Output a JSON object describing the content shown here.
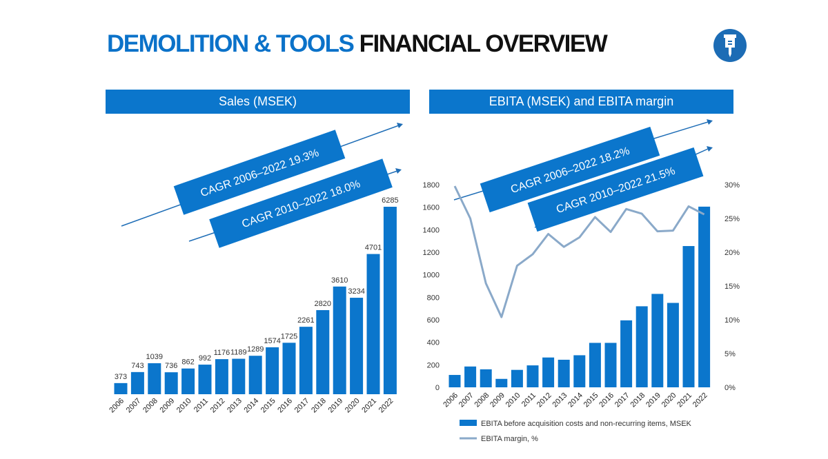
{
  "title": {
    "part1": "DEMOLITION & TOOLS",
    "part2": "FINANCIAL OVERVIEW"
  },
  "colors": {
    "accent": "#0b76cc",
    "line": "#8aa9c9",
    "title_blue": "#0b72c9"
  },
  "logo": {
    "icon": "demolition-hammer-icon"
  },
  "chart_data": [
    {
      "type": "bar",
      "title": "Sales (MSEK)",
      "categories": [
        "2006",
        "2007",
        "2008",
        "2009",
        "2010",
        "2011",
        "2012",
        "2013",
        "2014",
        "2015",
        "2016",
        "2017",
        "2018",
        "2019",
        "2020",
        "2021",
        "2022"
      ],
      "values": [
        373,
        743,
        1039,
        736,
        862,
        992,
        1176,
        1189,
        1289,
        1574,
        1725,
        2261,
        2820,
        3610,
        3234,
        4701,
        6285
      ],
      "annotations": [
        "CAGR 2006–2022 19.3%",
        "CAGR 2010–2022 18.0%"
      ],
      "grid": false
    },
    {
      "type": "bar",
      "title": "EBITA (MSEK) and EBITA margin",
      "categories": [
        "2006",
        "2007",
        "2008",
        "2009",
        "2010",
        "2011",
        "2012",
        "2013",
        "2014",
        "2015",
        "2016",
        "2017",
        "2018",
        "2019",
        "2020",
        "2021",
        "2022"
      ],
      "series": [
        {
          "name": "EBITA before acquisition costs and non-recurring items, MSEK",
          "type": "bar",
          "axis": "left",
          "values": [
            110,
            185,
            160,
            75,
            155,
            195,
            265,
            245,
            285,
            395,
            395,
            595,
            720,
            830,
            750,
            1255,
            1605
          ]
        },
        {
          "name": "EBITA margin, %",
          "type": "line",
          "axis": "right",
          "values": [
            29.8,
            25.0,
            15.4,
            10.4,
            18.0,
            19.7,
            22.7,
            20.8,
            22.2,
            25.2,
            23.0,
            26.4,
            25.7,
            23.1,
            23.2,
            26.8,
            25.6
          ]
        }
      ],
      "y_left": {
        "ylim": [
          0,
          1800
        ],
        "ticks": [
          "0",
          "200",
          "400",
          "600",
          "800",
          "1000",
          "1200",
          "1400",
          "1600",
          "1800"
        ]
      },
      "y_right": {
        "ylim": [
          0,
          30
        ],
        "ticks": [
          "0%",
          "5%",
          "10%",
          "15%",
          "20%",
          "25%",
          "30%"
        ]
      },
      "annotations": [
        "CAGR 2006–2022 18.2%",
        "CAGR 2010–2022 21.5%"
      ],
      "legend": "bottom",
      "grid": false
    }
  ]
}
